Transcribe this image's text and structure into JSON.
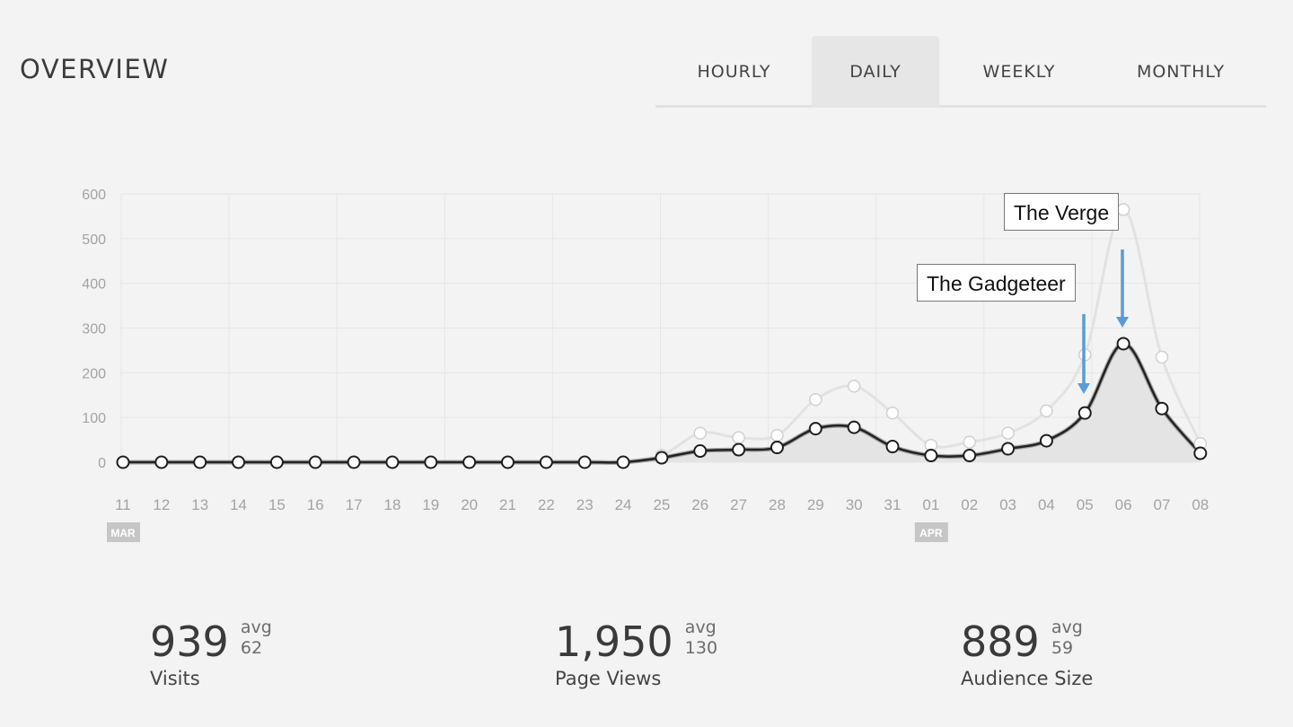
{
  "header": {
    "title": "OVERVIEW"
  },
  "tabs": [
    {
      "label": "HOURLY",
      "active": false
    },
    {
      "label": "DAILY",
      "active": true
    },
    {
      "label": "WEEKLY",
      "active": false
    },
    {
      "label": "MONTHLY",
      "active": false
    }
  ],
  "annotations": {
    "verge": "The Verge",
    "gadgeteer": "The Gadgeteer"
  },
  "stats": [
    {
      "value": "939",
      "avg_label": "avg",
      "avg": "62",
      "label": "Visits"
    },
    {
      "value": "1,950",
      "avg_label": "avg",
      "avg": "130",
      "label": "Page Views"
    },
    {
      "value": "889",
      "avg_label": "avg",
      "avg": "59",
      "label": "Audience Size"
    }
  ],
  "colors": {
    "annotation_arrow": "#5b9bd5",
    "primary_line": "#222222",
    "secondary_line": "#e2e2e2",
    "area_fill": "#e4e4e4"
  },
  "chart_data": {
    "type": "line",
    "categories": [
      "11",
      "12",
      "13",
      "14",
      "15",
      "16",
      "17",
      "18",
      "19",
      "20",
      "21",
      "22",
      "23",
      "24",
      "25",
      "26",
      "27",
      "28",
      "29",
      "30",
      "31",
      "01",
      "02",
      "03",
      "04",
      "05",
      "06",
      "07",
      "08"
    ],
    "month_labels": [
      {
        "label": "MAR",
        "index": 0
      },
      {
        "label": "APR",
        "index": 21
      }
    ],
    "yticks": [
      0,
      100,
      200,
      300,
      400,
      500,
      600
    ],
    "ylim": [
      0,
      600
    ],
    "grid": true,
    "series": [
      {
        "style": "secondary",
        "values": [
          0,
          0,
          0,
          0,
          0,
          0,
          0,
          0,
          0,
          0,
          0,
          0,
          0,
          0,
          15,
          65,
          55,
          60,
          140,
          170,
          110,
          38,
          45,
          65,
          115,
          240,
          565,
          235,
          42
        ]
      },
      {
        "style": "primary",
        "values": [
          0,
          0,
          0,
          0,
          0,
          0,
          0,
          0,
          0,
          0,
          0,
          0,
          0,
          0,
          10,
          25,
          28,
          33,
          75,
          78,
          35,
          15,
          15,
          30,
          48,
          110,
          265,
          120,
          20
        ]
      }
    ],
    "annotations": [
      {
        "text": "The Verge",
        "index": 26
      },
      {
        "text": "The Gadgeteer",
        "index": 25
      }
    ]
  }
}
